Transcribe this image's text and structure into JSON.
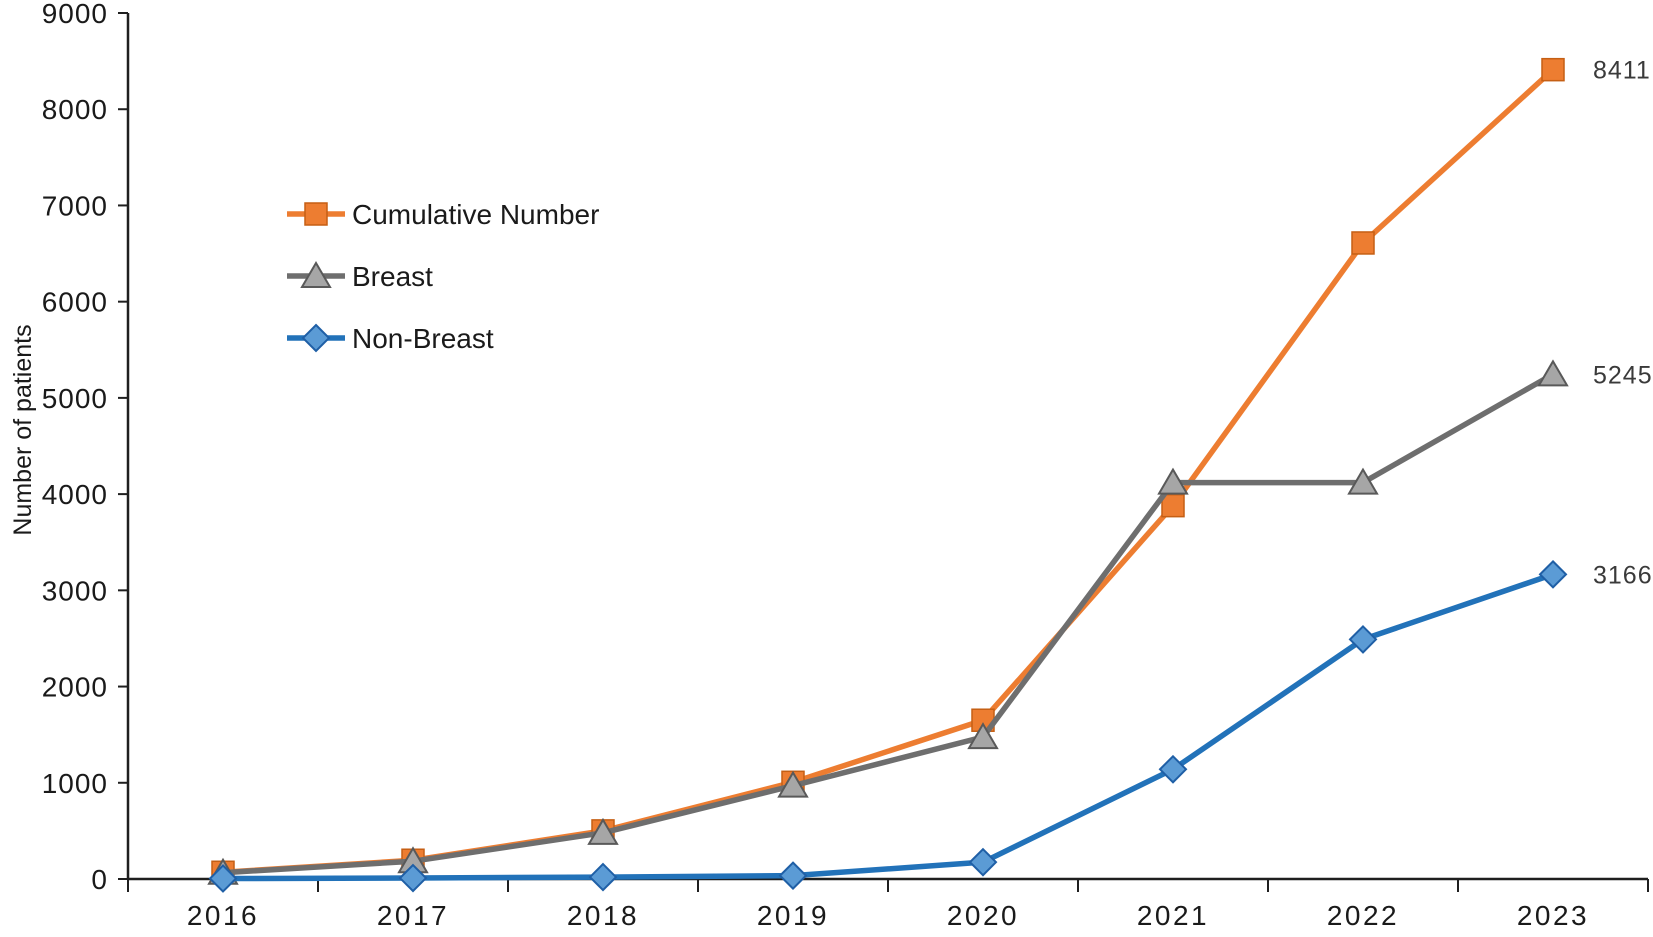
{
  "chart_data": {
    "type": "line",
    "title": "",
    "xlabel": "",
    "ylabel": "Number of patients",
    "categories": [
      "2016",
      "2017",
      "2018",
      "2019",
      "2020",
      "2021",
      "2022",
      "2023"
    ],
    "ylim": [
      0,
      9000
    ],
    "ytick_step": 1000,
    "ytick_labels": [
      "0",
      "1000",
      "2000",
      "3000",
      "4000",
      "5000",
      "6000",
      "7000",
      "8000",
      "9000"
    ],
    "grid": false,
    "legend_position": "upper-left-inside",
    "axis_color": "#1f1f1f",
    "tick_label_color": "#1a1a1a",
    "end_label_color": "#3a3a3a",
    "series": [
      {
        "name": "Cumulative Number",
        "color": "#ED7D31",
        "marker": "square",
        "marker_fill": "#ED7D31",
        "marker_stroke": "#C55F14",
        "values": [
          70,
          195,
          500,
          1005,
          1650,
          3880,
          6610,
          8411
        ],
        "end_label": "8411"
      },
      {
        "name": "Breast",
        "color": "#6E6E6E",
        "marker": "triangle",
        "marker_fill": "#A6A6A6",
        "marker_stroke": "#595959",
        "values": [
          65,
          185,
          480,
          970,
          1475,
          4120,
          4120,
          5245
        ],
        "end_label": "5245"
      },
      {
        "name": "Non-Breast",
        "color": "#2272B9",
        "marker": "diamond",
        "marker_fill": "#5B9BD5",
        "marker_stroke": "#1F5FA6",
        "values": [
          5,
          10,
          20,
          35,
          175,
          1140,
          2490,
          3166
        ],
        "end_label": "3166"
      }
    ]
  }
}
